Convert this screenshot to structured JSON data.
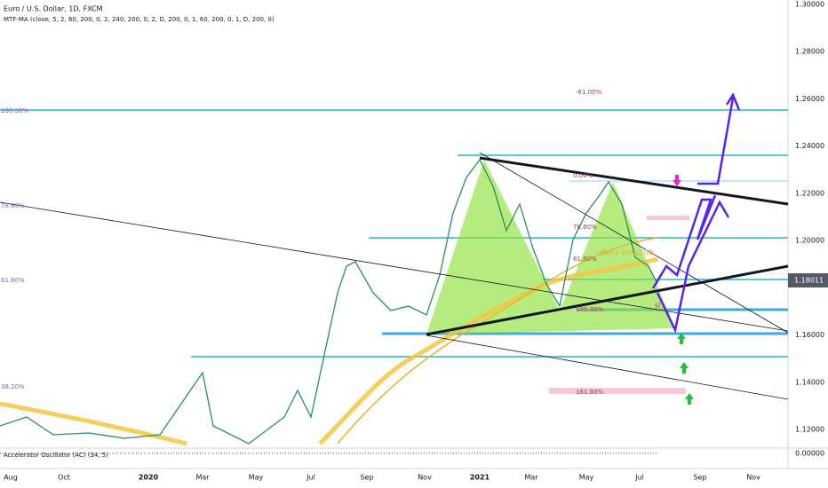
{
  "header": {
    "title": "Euro / U.S. Dollar, 1D, FXCM",
    "indicator": "MTF-MA (close, 5, 2, 60, 200, 0, 2, 240, 200, 0, 2, D, 200, 0, 1, 60, 200, 0, 1, D, 200, 0)"
  },
  "oscillator": {
    "label": "Accelerator Oscillator (AC) (34, 5)",
    "axis_label": "0.00000"
  },
  "price_axis": [
    "1.30000",
    "1.28000",
    "1.26000",
    "1.24000",
    "1.22000",
    "1.20000",
    "1.16000",
    "1.14000",
    "1.12000"
  ],
  "last_price": "1.18011",
  "time_axis": [
    "Aug",
    "Oct",
    "2020",
    "Mar",
    "May",
    "Jul",
    "Sep",
    "Nov",
    "2021",
    "Mar",
    "May",
    "Jul",
    "Sep",
    "Nov"
  ],
  "fib_left": [
    "100.00%",
    "78.60%",
    "61.80%",
    "38.20%"
  ],
  "pattern_labels": [
    "-61.00%",
    "0.00%",
    "78.60%",
    "61.80%",
    "100.00%",
    "161.80%"
  ],
  "annotations": {
    "sma": "daily sma200",
    "stop": "sl"
  }
}
